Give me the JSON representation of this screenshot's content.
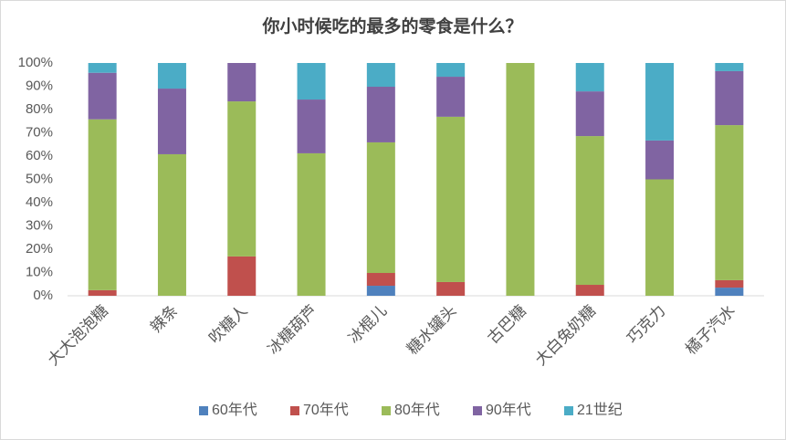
{
  "chart_data": {
    "type": "stacked_bar",
    "title": "你小时候吃的最多的零食是什么？",
    "categories": [
      "大大泡泡糖",
      "辣条",
      "吹糖人",
      "冰糖葫芦",
      "冰棍儿",
      "糖水罐头",
      "古巴糖",
      "大白兔奶糖",
      "巧克力",
      "橘子汽水"
    ],
    "series": [
      {
        "name": "60年代",
        "color": "#4f81bd",
        "values": [
          0,
          0,
          0,
          0,
          4.3,
          0,
          0,
          0,
          0,
          3.5
        ]
      },
      {
        "name": "70年代",
        "color": "#c0504d",
        "values": [
          2.4,
          0,
          16.9,
          0,
          5.5,
          5.9,
          0,
          4.7,
          0,
          3.2
        ]
      },
      {
        "name": "80年代",
        "color": "#9bbb59",
        "values": [
          73.4,
          60.8,
          66.6,
          61.2,
          56.1,
          71,
          100,
          63.9,
          50,
          66.6
        ]
      },
      {
        "name": "90年代",
        "color": "#8064a2",
        "values": [
          20,
          28.2,
          16.5,
          23.1,
          23.9,
          17.2,
          0,
          19.2,
          16.7,
          23.2
        ]
      },
      {
        "name": "21世纪",
        "color": "#4bacc6",
        "values": [
          4.2,
          11,
          0,
          15.7,
          10.2,
          5.9,
          0,
          12.2,
          33.3,
          3.5
        ]
      }
    ],
    "ylim": [
      0,
      100
    ],
    "yticks": [
      {
        "value": 0,
        "label": "0%"
      },
      {
        "value": 10,
        "label": "10%"
      },
      {
        "value": 20,
        "label": "20%"
      },
      {
        "value": 30,
        "label": "30%"
      },
      {
        "value": 40,
        "label": "40%"
      },
      {
        "value": 50,
        "label": "50%"
      },
      {
        "value": 60,
        "label": "60%"
      },
      {
        "value": 70,
        "label": "70%"
      },
      {
        "value": 80,
        "label": "80%"
      },
      {
        "value": 90,
        "label": "90%"
      },
      {
        "value": 100,
        "label": "100%"
      }
    ],
    "legend": "bottom"
  }
}
